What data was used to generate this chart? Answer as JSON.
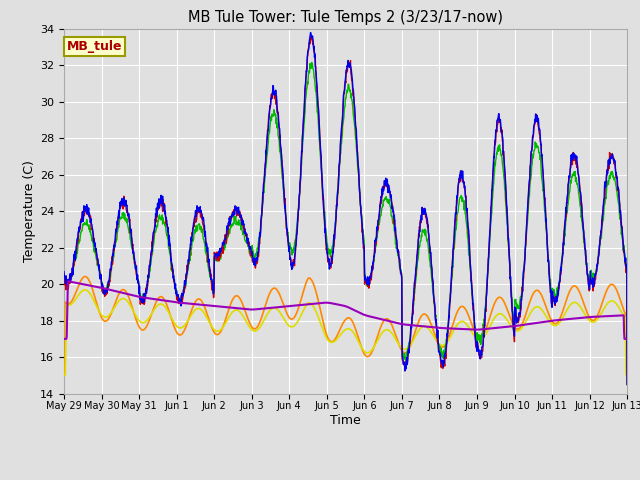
{
  "title": "MB Tule Tower: Tule Temps 2 (3/23/17-now)",
  "xlabel": "Time",
  "ylabel": "Temperature (C)",
  "ylim": [
    14,
    34
  ],
  "yticks": [
    14,
    16,
    18,
    20,
    22,
    24,
    26,
    28,
    30,
    32,
    34
  ],
  "bg_color": "#e0e0e0",
  "grid_color": "#ffffff",
  "series_colors": {
    "Tul2_Tw+2": "#cc0000",
    "Tul2_Ts-2": "#0000ee",
    "Tul2_Ts-4": "#00bb00",
    "Tul2_Ts-8": "#ff8800",
    "Tul2_Ts-16": "#dddd00",
    "Tul2_Ts-32": "#9900bb"
  },
  "legend_label_box": {
    "facecolor": "#ffffcc",
    "edgecolor": "#999900",
    "text": "MB_tule",
    "textcolor": "#aa0000"
  },
  "x_tick_labels": [
    "May 29",
    "May 30",
    "May 31",
    "Jun 1",
    "Jun 2",
    "Jun 3",
    "Jun 4",
    "Jun 5",
    "Jun 6",
    "Jun 7",
    "Jun 8",
    "Jun 9",
    "Jun 10",
    "Jun 11",
    "Jun 12",
    "Jun 13"
  ]
}
